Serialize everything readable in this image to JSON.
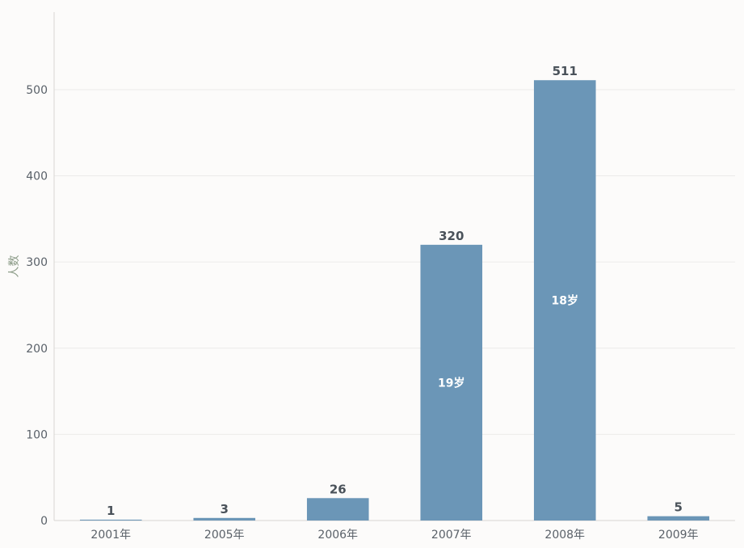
{
  "chart_data": {
    "type": "bar",
    "categories": [
      "2001年",
      "2005年",
      "2006年",
      "2007年",
      "2008年",
      "2009年"
    ],
    "values": [
      1,
      3,
      26,
      320,
      511,
      5
    ],
    "inner_labels": [
      "",
      "",
      "",
      "19岁",
      "18岁",
      ""
    ],
    "title": "",
    "xlabel": "",
    "ylabel": "人数",
    "ylim": [
      0,
      590
    ],
    "yticks": [
      0,
      100,
      200,
      300,
      400,
      500
    ],
    "grid": true,
    "colors": {
      "bar": "#6b96b7"
    }
  }
}
